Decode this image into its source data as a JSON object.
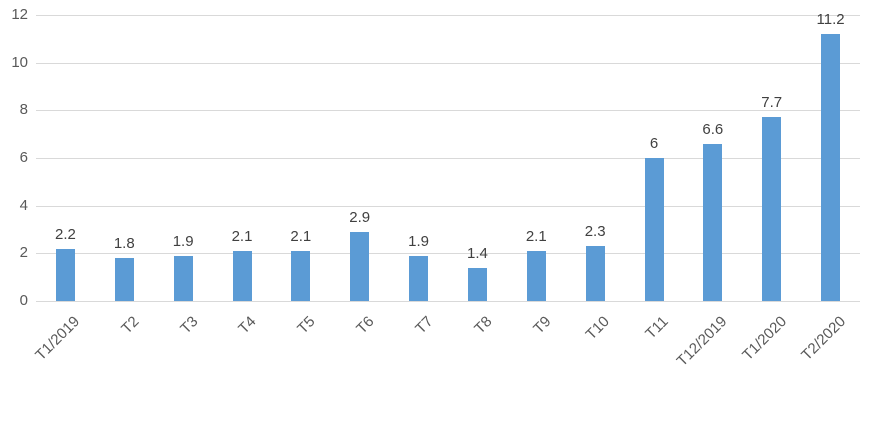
{
  "chart": {
    "background_color": "#ffffff",
    "bar_color": "#5b9bd5",
    "gridline_color": "#d9d9d9",
    "axis_label_color": "#595959",
    "data_label_color": "#404040"
  },
  "chart_data": {
    "type": "bar",
    "title": "",
    "xlabel": "",
    "ylabel": "",
    "categories": [
      "T1/2019",
      "T2",
      "T3",
      "T4",
      "T5",
      "T6",
      "T7",
      "T8",
      "T9",
      "T10",
      "T11",
      "T12/2019",
      "T1/2020",
      "T2/2020"
    ],
    "values": [
      2.2,
      1.8,
      1.9,
      2.1,
      2.1,
      2.9,
      1.9,
      1.4,
      2.1,
      2.3,
      6,
      6.6,
      7.7,
      11.2
    ],
    "data_labels": [
      "2.2",
      "1.8",
      "1.9",
      "2.1",
      "2.1",
      "2.9",
      "1.9",
      "1.4",
      "2.1",
      "2.3",
      "6",
      "6.6",
      "7.7",
      "11.2"
    ],
    "ylim": [
      0,
      12
    ],
    "yticks": [
      0,
      2,
      4,
      6,
      8,
      10,
      12
    ],
    "grid": true,
    "legend": "none",
    "x_tick_rotation_deg": 45,
    "series_name": ""
  }
}
